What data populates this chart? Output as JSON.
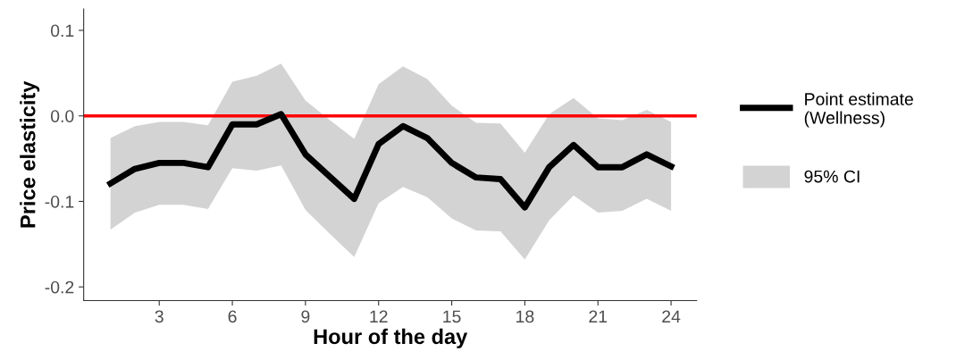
{
  "chart_data": {
    "type": "line",
    "xlabel": "Hour of the day",
    "ylabel": "Price elasticity",
    "x": [
      1,
      2,
      3,
      4,
      5,
      6,
      7,
      8,
      9,
      10,
      11,
      12,
      13,
      14,
      15,
      16,
      17,
      18,
      19,
      20,
      21,
      22,
      23,
      24
    ],
    "series": [
      {
        "name": "Point estimate\n(Wellness)",
        "color": "#000000",
        "values": [
          -0.079,
          -0.062,
          -0.055,
          -0.055,
          -0.06,
          -0.01,
          -0.01,
          0.002,
          -0.045,
          -0.071,
          -0.097,
          -0.033,
          -0.012,
          -0.026,
          -0.055,
          -0.072,
          -0.074,
          -0.107,
          -0.06,
          -0.034,
          -0.06,
          -0.06,
          -0.045,
          -0.059
        ],
        "lower": [
          -0.133,
          -0.113,
          -0.104,
          -0.104,
          -0.109,
          -0.061,
          -0.064,
          -0.058,
          -0.11,
          -0.138,
          -0.165,
          -0.102,
          -0.083,
          -0.095,
          -0.12,
          -0.134,
          -0.135,
          -0.168,
          -0.122,
          -0.093,
          -0.113,
          -0.111,
          -0.097,
          -0.111
        ],
        "upper": [
          -0.026,
          -0.012,
          -0.007,
          -0.007,
          -0.011,
          0.04,
          0.047,
          0.061,
          0.018,
          -0.005,
          -0.027,
          0.037,
          0.058,
          0.043,
          0.012,
          -0.008,
          -0.009,
          -0.043,
          0.002,
          0.021,
          -0.003,
          -0.005,
          0.007,
          -0.007
        ]
      }
    ],
    "annotations": [
      "95% CI"
    ],
    "xlim": [
      -0.1,
      25.05
    ],
    "xticks": [
      3,
      6,
      9,
      12,
      15,
      18,
      21,
      24
    ],
    "ylim": [
      -0.216,
      0.125
    ],
    "yticks": [
      {
        "value": -0.2,
        "label": "-0.2"
      },
      {
        "value": -0.1,
        "label": "-0.1"
      },
      {
        "value": 0,
        "label": "0.0"
      },
      0.1
    ],
    "ref_lines": [
      {
        "axis": "y",
        "value": 0,
        "color": "#ff0000"
      }
    ],
    "grid": false,
    "legend": "right"
  }
}
